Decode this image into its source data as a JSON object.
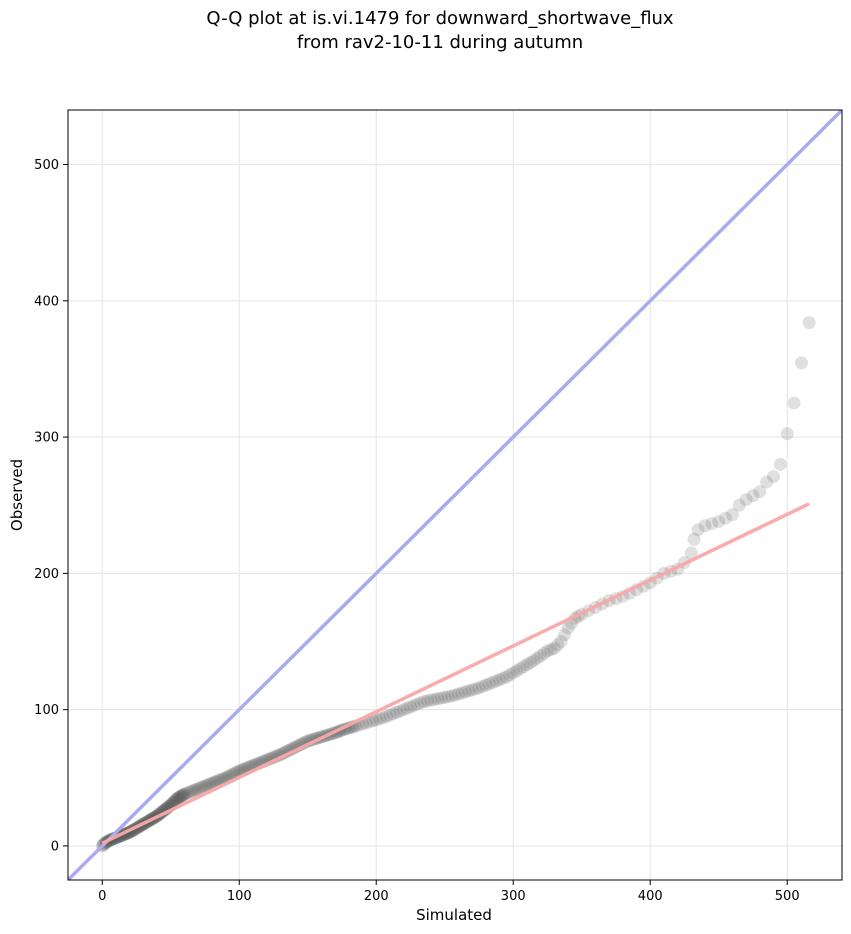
{
  "chart_data": {
    "type": "scatter",
    "title_line1": "Q-Q plot at is.vi.1479 for downward_shortwave_flux",
    "title_line2": "from rav2-10-11 during autumn",
    "xlabel": "Simulated",
    "ylabel": "Observed",
    "xlim": [
      -25,
      540
    ],
    "ylim": [
      -25,
      540
    ],
    "xticks": [
      0,
      100,
      200,
      300,
      400,
      500
    ],
    "yticks": [
      0,
      100,
      200,
      300,
      400,
      500
    ],
    "grid": true,
    "identity_line_color": "#aaaaf0",
    "fit_line_color": "#f8a8a8",
    "point_color": "#555555",
    "fit_line": {
      "x": [
        0,
        516
      ],
      "y": [
        2,
        251
      ]
    },
    "points_anchors": [
      [
        0,
        0
      ],
      [
        2,
        2
      ],
      [
        5,
        4
      ],
      [
        10,
        6
      ],
      [
        15,
        8
      ],
      [
        20,
        10
      ],
      [
        25,
        13
      ],
      [
        30,
        16
      ],
      [
        35,
        19
      ],
      [
        40,
        22
      ],
      [
        45,
        26
      ],
      [
        50,
        30
      ],
      [
        55,
        35
      ],
      [
        60,
        38
      ],
      [
        70,
        42
      ],
      [
        80,
        46
      ],
      [
        90,
        50
      ],
      [
        100,
        55
      ],
      [
        110,
        59
      ],
      [
        120,
        63
      ],
      [
        130,
        67
      ],
      [
        140,
        72
      ],
      [
        150,
        77
      ],
      [
        160,
        80
      ],
      [
        170,
        83
      ],
      [
        175,
        85
      ],
      [
        185,
        88
      ],
      [
        195,
        91
      ],
      [
        205,
        94
      ],
      [
        215,
        98
      ],
      [
        225,
        102
      ],
      [
        235,
        106
      ],
      [
        245,
        108
      ],
      [
        255,
        110
      ],
      [
        265,
        113
      ],
      [
        275,
        116
      ],
      [
        285,
        120
      ],
      [
        295,
        124
      ],
      [
        305,
        130
      ],
      [
        315,
        136
      ],
      [
        325,
        143
      ],
      [
        330,
        145
      ],
      [
        335,
        150
      ],
      [
        340,
        160
      ],
      [
        345,
        167
      ],
      [
        350,
        170
      ],
      [
        360,
        175
      ],
      [
        370,
        180
      ],
      [
        380,
        183
      ],
      [
        390,
        188
      ],
      [
        400,
        193
      ],
      [
        410,
        200
      ],
      [
        420,
        203
      ],
      [
        425,
        208
      ],
      [
        430,
        215
      ],
      [
        432,
        225
      ],
      [
        435,
        232
      ],
      [
        440,
        235
      ],
      [
        450,
        238
      ],
      [
        460,
        243
      ],
      [
        465,
        250
      ],
      [
        470,
        254
      ],
      [
        480,
        260
      ],
      [
        485,
        267
      ],
      [
        490,
        271
      ],
      [
        495,
        280
      ],
      [
        505,
        325
      ],
      [
        516,
        384
      ]
    ]
  }
}
